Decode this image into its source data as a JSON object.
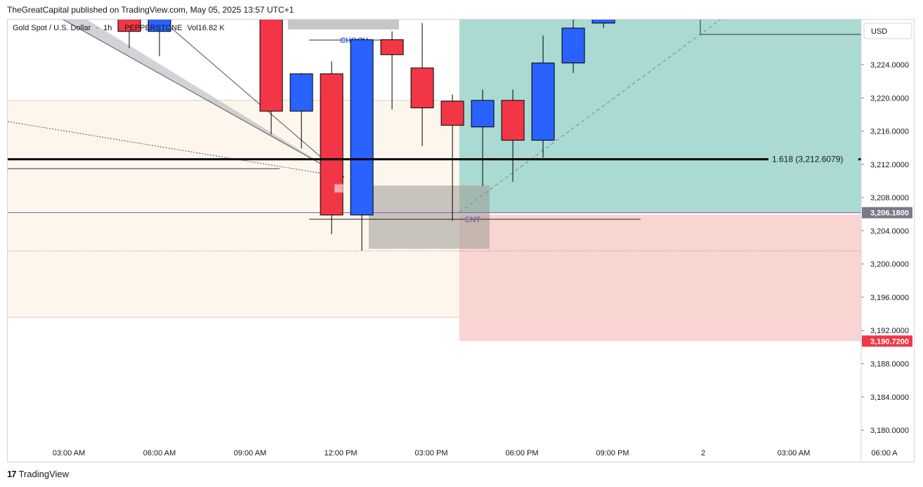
{
  "header": {
    "published": "TheGreatCapital published on TradingView.com, May 05, 2025 13:57 UTC+1"
  },
  "legend": {
    "symbol": "Gold Spot / U.S. Dollar",
    "sep1": "·",
    "interval": "1h",
    "sep2": "·",
    "broker": "PEPPERSTONE",
    "volume": "Vol16.82 K"
  },
  "colors": {
    "bull": "#2962ff",
    "bear": "#f23645",
    "profit_zone": "#a5d8d0",
    "loss_zone": "#f8d3d0",
    "zone_beige": "#fdf6ec",
    "fib_line": "#000000",
    "entry_line": "#7e57c2",
    "price_tag_gray": "#787b86",
    "price_tag_red": "#f23645",
    "choch_text": "#2962ff"
  },
  "footer": {
    "brand": "TradingView"
  },
  "chart_data": {
    "type": "candlestick",
    "currency": "USD",
    "y_ticks": [
      "3,224.0000",
      "3,220.0000",
      "3,216.0000",
      "3,212.0000",
      "3,208.0000",
      "3,204.0000",
      "3,200.0000",
      "3,196.0000",
      "3,192.0000",
      "3,188.0000",
      "3,184.0000",
      "3,180.0000"
    ],
    "y_tick_values": [
      3224,
      3220,
      3216,
      3212,
      3208,
      3204,
      3200,
      3196,
      3192,
      3188,
      3184,
      3180
    ],
    "ylim": [
      3178.3,
      3229.6
    ],
    "x_ticks": [
      "03:00 AM",
      "06:00 AM",
      "09:00 AM",
      "12:00 PM",
      "03:00 PM",
      "06:00 PM",
      "09:00 PM",
      "2",
      "03:00 AM",
      "06:00 A"
    ],
    "x_tick_hours": [
      3,
      6,
      9,
      12,
      15,
      18,
      21,
      24,
      27,
      30
    ],
    "candles": [
      {
        "t": 5,
        "o": 3231.0,
        "h": 3232.0,
        "l": 3226.0,
        "c": 3228.0
      },
      {
        "t": 6,
        "o": 3228.0,
        "h": 3231.5,
        "l": 3225.0,
        "c": 3231.0
      },
      {
        "t": 9.7,
        "o": 3231.5,
        "h": 3232.0,
        "l": 3215.6,
        "c": 3218.4
      },
      {
        "t": 10.7,
        "o": 3218.4,
        "h": 3223.0,
        "l": 3213.9,
        "c": 3222.9
      },
      {
        "t": 11.7,
        "o": 3222.9,
        "h": 3224.4,
        "l": 3203.6,
        "c": 3205.9
      },
      {
        "t": 12.7,
        "o": 3205.9,
        "h": 3227.2,
        "l": 3201.6,
        "c": 3227.0
      },
      {
        "t": 13.7,
        "o": 3227.0,
        "h": 3228.0,
        "l": 3218.6,
        "c": 3225.2
      },
      {
        "t": 14.7,
        "o": 3223.6,
        "h": 3229.0,
        "l": 3214.2,
        "c": 3218.8
      },
      {
        "t": 15.7,
        "o": 3219.6,
        "h": 3220.4,
        "l": 3205.2,
        "c": 3216.7
      },
      {
        "t": 16.7,
        "o": 3216.5,
        "h": 3221.0,
        "l": 3209.4,
        "c": 3219.7
      },
      {
        "t": 17.7,
        "o": 3219.7,
        "h": 3221.0,
        "l": 3209.9,
        "c": 3214.9
      },
      {
        "t": 18.7,
        "o": 3214.9,
        "h": 3227.5,
        "l": 3212.8,
        "c": 3224.2
      },
      {
        "t": 19.7,
        "o": 3224.2,
        "h": 3230.5,
        "l": 3223.0,
        "c": 3228.4
      },
      {
        "t": 20.7,
        "o": 3229.0,
        "h": 3231.5,
        "l": 3228.4,
        "c": 3231.0
      }
    ],
    "levels": {
      "fib_label": "1.618 (3,212.6079)",
      "fib_price": 3212.6079,
      "entry_price": 3206.18,
      "entry_tag": "3,206.1800",
      "stop_price": 3190.72,
      "stop_tag": "3,190.7200",
      "zone_top": 3219.7,
      "zone_bottom": 3193.6
    },
    "annotations": {
      "choch": "CHOCH",
      "ent": "ENT"
    }
  }
}
